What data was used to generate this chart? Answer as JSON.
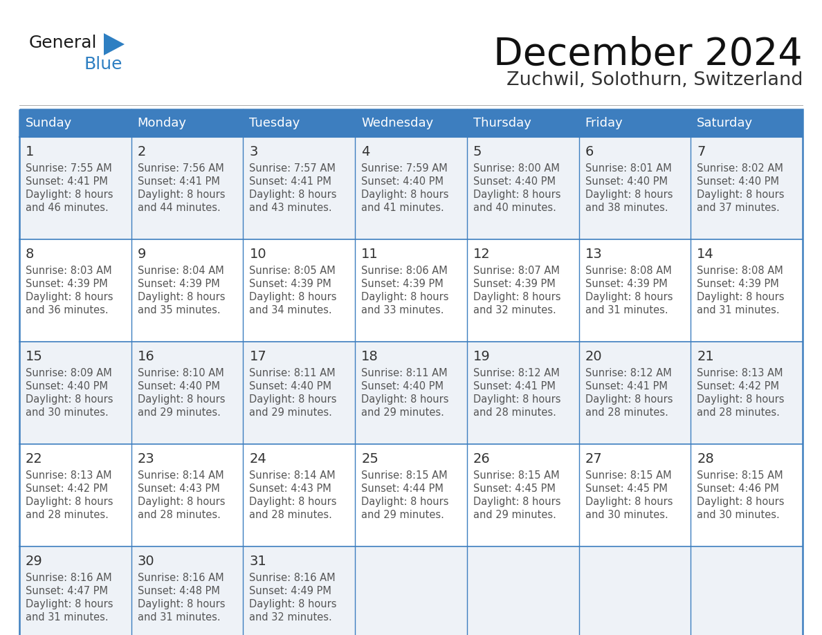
{
  "title": "December 2024",
  "subtitle": "Zuchwil, Solothurn, Switzerland",
  "header_color": "#3d7ebf",
  "header_text_color": "#ffffff",
  "day_names": [
    "Sunday",
    "Monday",
    "Tuesday",
    "Wednesday",
    "Thursday",
    "Friday",
    "Saturday"
  ],
  "cell_bg_light": "#eef2f7",
  "cell_bg_white": "#ffffff",
  "cell_border_color": "#3d7ebf",
  "date_color": "#333333",
  "text_color": "#555555",
  "logo_general_color": "#1a1a1a",
  "logo_blue_color": "#2e7fc2",
  "days": [
    {
      "date": 1,
      "col": 0,
      "row": 0,
      "sunrise": "7:55 AM",
      "sunset": "4:41 PM",
      "daylight_min": "46 minutes."
    },
    {
      "date": 2,
      "col": 1,
      "row": 0,
      "sunrise": "7:56 AM",
      "sunset": "4:41 PM",
      "daylight_min": "44 minutes."
    },
    {
      "date": 3,
      "col": 2,
      "row": 0,
      "sunrise": "7:57 AM",
      "sunset": "4:41 PM",
      "daylight_min": "43 minutes."
    },
    {
      "date": 4,
      "col": 3,
      "row": 0,
      "sunrise": "7:59 AM",
      "sunset": "4:40 PM",
      "daylight_min": "41 minutes."
    },
    {
      "date": 5,
      "col": 4,
      "row": 0,
      "sunrise": "8:00 AM",
      "sunset": "4:40 PM",
      "daylight_min": "40 minutes."
    },
    {
      "date": 6,
      "col": 5,
      "row": 0,
      "sunrise": "8:01 AM",
      "sunset": "4:40 PM",
      "daylight_min": "38 minutes."
    },
    {
      "date": 7,
      "col": 6,
      "row": 0,
      "sunrise": "8:02 AM",
      "sunset": "4:40 PM",
      "daylight_min": "37 minutes."
    },
    {
      "date": 8,
      "col": 0,
      "row": 1,
      "sunrise": "8:03 AM",
      "sunset": "4:39 PM",
      "daylight_min": "36 minutes."
    },
    {
      "date": 9,
      "col": 1,
      "row": 1,
      "sunrise": "8:04 AM",
      "sunset": "4:39 PM",
      "daylight_min": "35 minutes."
    },
    {
      "date": 10,
      "col": 2,
      "row": 1,
      "sunrise": "8:05 AM",
      "sunset": "4:39 PM",
      "daylight_min": "34 minutes."
    },
    {
      "date": 11,
      "col": 3,
      "row": 1,
      "sunrise": "8:06 AM",
      "sunset": "4:39 PM",
      "daylight_min": "33 minutes."
    },
    {
      "date": 12,
      "col": 4,
      "row": 1,
      "sunrise": "8:07 AM",
      "sunset": "4:39 PM",
      "daylight_min": "32 minutes."
    },
    {
      "date": 13,
      "col": 5,
      "row": 1,
      "sunrise": "8:08 AM",
      "sunset": "4:39 PM",
      "daylight_min": "31 minutes."
    },
    {
      "date": 14,
      "col": 6,
      "row": 1,
      "sunrise": "8:08 AM",
      "sunset": "4:39 PM",
      "daylight_min": "31 minutes."
    },
    {
      "date": 15,
      "col": 0,
      "row": 2,
      "sunrise": "8:09 AM",
      "sunset": "4:40 PM",
      "daylight_min": "30 minutes."
    },
    {
      "date": 16,
      "col": 1,
      "row": 2,
      "sunrise": "8:10 AM",
      "sunset": "4:40 PM",
      "daylight_min": "29 minutes."
    },
    {
      "date": 17,
      "col": 2,
      "row": 2,
      "sunrise": "8:11 AM",
      "sunset": "4:40 PM",
      "daylight_min": "29 minutes."
    },
    {
      "date": 18,
      "col": 3,
      "row": 2,
      "sunrise": "8:11 AM",
      "sunset": "4:40 PM",
      "daylight_min": "29 minutes."
    },
    {
      "date": 19,
      "col": 4,
      "row": 2,
      "sunrise": "8:12 AM",
      "sunset": "4:41 PM",
      "daylight_min": "28 minutes."
    },
    {
      "date": 20,
      "col": 5,
      "row": 2,
      "sunrise": "8:12 AM",
      "sunset": "4:41 PM",
      "daylight_min": "28 minutes."
    },
    {
      "date": 21,
      "col": 6,
      "row": 2,
      "sunrise": "8:13 AM",
      "sunset": "4:42 PM",
      "daylight_min": "28 minutes."
    },
    {
      "date": 22,
      "col": 0,
      "row": 3,
      "sunrise": "8:13 AM",
      "sunset": "4:42 PM",
      "daylight_min": "28 minutes."
    },
    {
      "date": 23,
      "col": 1,
      "row": 3,
      "sunrise": "8:14 AM",
      "sunset": "4:43 PM",
      "daylight_min": "28 minutes."
    },
    {
      "date": 24,
      "col": 2,
      "row": 3,
      "sunrise": "8:14 AM",
      "sunset": "4:43 PM",
      "daylight_min": "28 minutes."
    },
    {
      "date": 25,
      "col": 3,
      "row": 3,
      "sunrise": "8:15 AM",
      "sunset": "4:44 PM",
      "daylight_min": "29 minutes."
    },
    {
      "date": 26,
      "col": 4,
      "row": 3,
      "sunrise": "8:15 AM",
      "sunset": "4:45 PM",
      "daylight_min": "29 minutes."
    },
    {
      "date": 27,
      "col": 5,
      "row": 3,
      "sunrise": "8:15 AM",
      "sunset": "4:45 PM",
      "daylight_min": "30 minutes."
    },
    {
      "date": 28,
      "col": 6,
      "row": 3,
      "sunrise": "8:15 AM",
      "sunset": "4:46 PM",
      "daylight_min": "30 minutes."
    },
    {
      "date": 29,
      "col": 0,
      "row": 4,
      "sunrise": "8:16 AM",
      "sunset": "4:47 PM",
      "daylight_min": "31 minutes."
    },
    {
      "date": 30,
      "col": 1,
      "row": 4,
      "sunrise": "8:16 AM",
      "sunset": "4:48 PM",
      "daylight_min": "31 minutes."
    },
    {
      "date": 31,
      "col": 2,
      "row": 4,
      "sunrise": "8:16 AM",
      "sunset": "4:49 PM",
      "daylight_min": "32 minutes."
    }
  ]
}
